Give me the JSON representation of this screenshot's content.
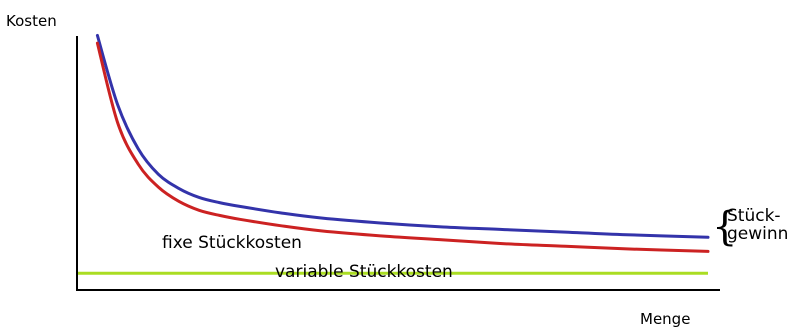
{
  "chart_data": {
    "type": "line",
    "xlabel": "Menge",
    "ylabel": "Kosten",
    "grid": false,
    "legend": "none",
    "x": [
      1,
      2,
      3,
      4,
      5,
      6,
      7,
      8,
      10,
      12,
      15,
      18,
      21,
      24,
      27,
      31
    ],
    "series": [
      {
        "id": "blue",
        "color": "#3333aa",
        "values": [
          9.9,
          7.2,
          5.5,
          4.5,
          3.95,
          3.6,
          3.4,
          3.25,
          3.0,
          2.8,
          2.6,
          2.45,
          2.35,
          2.25,
          2.15,
          2.05
        ]
      },
      {
        "id": "red",
        "color": "#cc2222",
        "values": [
          9.6,
          6.5,
          4.9,
          4.0,
          3.45,
          3.1,
          2.9,
          2.75,
          2.5,
          2.3,
          2.1,
          1.95,
          1.8,
          1.7,
          1.6,
          1.5
        ]
      }
    ],
    "horizontal_lines": [
      {
        "id": "green",
        "color": "#aadd22",
        "y": 0.65
      }
    ],
    "ylim": [
      0,
      10.5
    ],
    "xlim": [
      0,
      31
    ],
    "annotations": {
      "fixed": "fixe Stückkosten",
      "variable": "variable Stückkosten",
      "margin_line1": "Stück-",
      "margin_line2": "gewinn",
      "brace": "{"
    }
  }
}
